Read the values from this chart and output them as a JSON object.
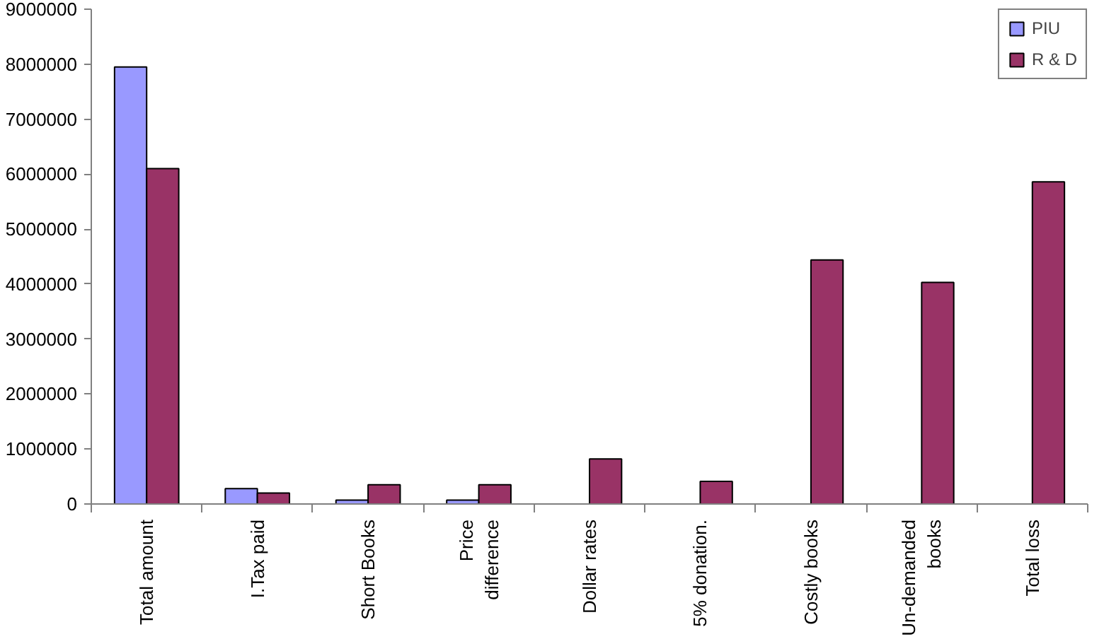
{
  "chart_data": {
    "type": "bar",
    "categories": [
      "Total amount",
      "I.Tax paid",
      "Short Books",
      "Price difference",
      "Dollar rates",
      "5% donation.",
      "Costly books",
      "Un-demanded books",
      "Total loss"
    ],
    "series": [
      {
        "name": "PIU",
        "color": "#9999ff",
        "values": [
          7950000,
          280000,
          70000,
          70000,
          null,
          null,
          null,
          null,
          null
        ]
      },
      {
        "name": "R & D",
        "color": "#993366",
        "values": [
          6100000,
          200000,
          350000,
          350000,
          820000,
          410000,
          4440000,
          4030000,
          5860000
        ]
      }
    ],
    "ylim": [
      0,
      9000000
    ],
    "yticks": [
      0,
      1000000,
      2000000,
      3000000,
      4000000,
      5000000,
      6000000,
      7000000,
      8000000,
      9000000
    ],
    "grid": false,
    "legend": "top right"
  }
}
